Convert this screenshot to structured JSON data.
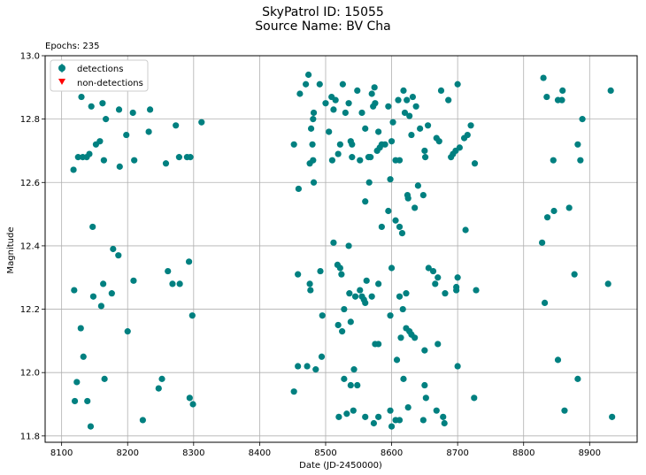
{
  "header": {
    "line1": "SkyPatrol ID: 15055",
    "line2": "Source Name: BV Cha",
    "epochs": "Epochs: 235"
  },
  "colors": {
    "detection": "#008080",
    "nondetection": "#ff0000",
    "grid": "#b0b0b0"
  },
  "chart_data": {
    "type": "scatter",
    "xlabel": "Date (JD-2450000)",
    "ylabel": "Magnitude",
    "xlim": [
      8075,
      8972
    ],
    "ylim": [
      13.0,
      11.78
    ],
    "y_inverted": true,
    "grid": true,
    "legend_position": "upper-left",
    "xticks": [
      8100,
      8200,
      8300,
      8400,
      8500,
      8600,
      8700,
      8800,
      8900
    ],
    "yticks": [
      11.8,
      12.0,
      12.2,
      12.4,
      12.6,
      12.8,
      13.0
    ],
    "xtick_labels": [
      "8100",
      "8200",
      "8300",
      "8400",
      "8500",
      "8600",
      "8700",
      "8800",
      "8900"
    ],
    "ytick_labels": [
      "11.8",
      "12.0",
      "12.2",
      "12.4",
      "12.6",
      "12.8",
      "13.0"
    ],
    "series": [
      {
        "name": "detections",
        "marker": "circle",
        "points": [
          [
            8118,
            12.64
          ],
          [
            8125,
            12.68
          ],
          [
            8132,
            12.68
          ],
          [
            8138,
            12.68
          ],
          [
            8142,
            12.69
          ],
          [
            8152,
            12.72
          ],
          [
            8158,
            12.73
          ],
          [
            8164,
            12.67
          ],
          [
            8188,
            12.65
          ],
          [
            8198,
            12.75
          ],
          [
            8210,
            12.67
          ],
          [
            8232,
            12.76
          ],
          [
            8258,
            12.66
          ],
          [
            8273,
            12.78
          ],
          [
            8278,
            12.68
          ],
          [
            8290,
            12.68
          ],
          [
            8295,
            12.68
          ],
          [
            8312,
            12.79
          ],
          [
            8130,
            12.87
          ],
          [
            8145,
            12.84
          ],
          [
            8162,
            12.85
          ],
          [
            8167,
            12.8
          ],
          [
            8187,
            12.83
          ],
          [
            8208,
            12.82
          ],
          [
            8234,
            12.83
          ],
          [
            8147,
            12.46
          ],
          [
            8178,
            12.39
          ],
          [
            8186,
            12.37
          ],
          [
            8119,
            12.26
          ],
          [
            8148,
            12.24
          ],
          [
            8160,
            12.21
          ],
          [
            8163,
            12.28
          ],
          [
            8176,
            12.25
          ],
          [
            8209,
            12.29
          ],
          [
            8261,
            12.32
          ],
          [
            8268,
            12.28
          ],
          [
            8279,
            12.28
          ],
          [
            8293,
            12.35
          ],
          [
            8129,
            12.14
          ],
          [
            8200,
            12.13
          ],
          [
            8298,
            12.18
          ],
          [
            8133,
            12.05
          ],
          [
            8123,
            11.97
          ],
          [
            8165,
            11.98
          ],
          [
            8252,
            11.98
          ],
          [
            8247,
            11.95
          ],
          [
            8120,
            11.91
          ],
          [
            8139,
            11.91
          ],
          [
            8294,
            11.92
          ],
          [
            8299,
            11.9
          ],
          [
            8223,
            11.85
          ],
          [
            8144,
            11.83
          ],
          [
            8452,
            12.72
          ],
          [
            8461,
            12.88
          ],
          [
            8470,
            12.91
          ],
          [
            8474,
            12.94
          ],
          [
            8478,
            12.77
          ],
          [
            8480,
            12.72
          ],
          [
            8476,
            12.66
          ],
          [
            8481,
            12.67
          ],
          [
            8481,
            12.8
          ],
          [
            8482,
            12.82
          ],
          [
            8482,
            12.6
          ],
          [
            8459,
            12.58
          ],
          [
            8491,
            12.91
          ],
          [
            8500,
            12.85
          ],
          [
            8505,
            12.76
          ],
          [
            8510,
            12.67
          ],
          [
            8509,
            12.87
          ],
          [
            8512,
            12.83
          ],
          [
            8515,
            12.86
          ],
          [
            8519,
            12.69
          ],
          [
            8522,
            12.72
          ],
          [
            8526,
            12.91
          ],
          [
            8530,
            12.82
          ],
          [
            8535,
            12.85
          ],
          [
            8538,
            12.73
          ],
          [
            8540,
            12.72
          ],
          [
            8540,
            12.68
          ],
          [
            8548,
            12.89
          ],
          [
            8552,
            12.67
          ],
          [
            8555,
            12.82
          ],
          [
            8560,
            12.77
          ],
          [
            8565,
            12.68
          ],
          [
            8566,
            12.6
          ],
          [
            8568,
            12.68
          ],
          [
            8570,
            12.88
          ],
          [
            8572,
            12.84
          ],
          [
            8574,
            12.9
          ],
          [
            8575,
            12.85
          ],
          [
            8578,
            12.7
          ],
          [
            8580,
            12.76
          ],
          [
            8582,
            12.71
          ],
          [
            8585,
            12.72
          ],
          [
            8590,
            12.72
          ],
          [
            8595,
            12.84
          ],
          [
            8598,
            12.61
          ],
          [
            8600,
            12.73
          ],
          [
            8602,
            12.79
          ],
          [
            8606,
            12.67
          ],
          [
            8610,
            12.86
          ],
          [
            8612,
            12.67
          ],
          [
            8618,
            12.89
          ],
          [
            8620,
            12.82
          ],
          [
            8623,
            12.86
          ],
          [
            8627,
            12.81
          ],
          [
            8630,
            12.75
          ],
          [
            8632,
            12.87
          ],
          [
            8637,
            12.84
          ],
          [
            8640,
            12.59
          ],
          [
            8643,
            12.77
          ],
          [
            8650,
            12.7
          ],
          [
            8651,
            12.68
          ],
          [
            8655,
            12.78
          ],
          [
            8668,
            12.74
          ],
          [
            8672,
            12.73
          ],
          [
            8675,
            12.89
          ],
          [
            8686,
            12.86
          ],
          [
            8690,
            12.68
          ],
          [
            8693,
            12.69
          ],
          [
            8697,
            12.7
          ],
          [
            8700,
            12.91
          ],
          [
            8703,
            12.71
          ],
          [
            8710,
            12.74
          ],
          [
            8715,
            12.75
          ],
          [
            8720,
            12.78
          ],
          [
            8726,
            12.66
          ],
          [
            8560,
            12.54
          ],
          [
            8585,
            12.46
          ],
          [
            8595,
            12.51
          ],
          [
            8606,
            12.48
          ],
          [
            8612,
            12.46
          ],
          [
            8616,
            12.44
          ],
          [
            8624,
            12.56
          ],
          [
            8625,
            12.55
          ],
          [
            8635,
            12.52
          ],
          [
            8648,
            12.56
          ],
          [
            8712,
            12.45
          ],
          [
            8512,
            12.41
          ],
          [
            8535,
            12.4
          ],
          [
            8458,
            12.31
          ],
          [
            8476,
            12.28
          ],
          [
            8477,
            12.26
          ],
          [
            8492,
            12.32
          ],
          [
            8518,
            12.34
          ],
          [
            8522,
            12.33
          ],
          [
            8524,
            12.31
          ],
          [
            8528,
            12.2
          ],
          [
            8536,
            12.25
          ],
          [
            8545,
            12.24
          ],
          [
            8552,
            12.26
          ],
          [
            8555,
            12.24
          ],
          [
            8558,
            12.23
          ],
          [
            8560,
            12.22
          ],
          [
            8562,
            12.29
          ],
          [
            8570,
            12.24
          ],
          [
            8580,
            12.28
          ],
          [
            8600,
            12.33
          ],
          [
            8612,
            12.24
          ],
          [
            8617,
            12.2
          ],
          [
            8622,
            12.25
          ],
          [
            8656,
            12.33
          ],
          [
            8663,
            12.32
          ],
          [
            8666,
            12.28
          ],
          [
            8670,
            12.3
          ],
          [
            8681,
            12.25
          ],
          [
            8698,
            12.27
          ],
          [
            8700,
            12.3
          ],
          [
            8698,
            12.26
          ],
          [
            8728,
            12.26
          ],
          [
            8495,
            12.18
          ],
          [
            8519,
            12.15
          ],
          [
            8525,
            12.13
          ],
          [
            8538,
            12.16
          ],
          [
            8575,
            12.09
          ],
          [
            8580,
            12.09
          ],
          [
            8598,
            12.18
          ],
          [
            8614,
            12.11
          ],
          [
            8622,
            12.14
          ],
          [
            8627,
            12.13
          ],
          [
            8630,
            12.12
          ],
          [
            8635,
            12.11
          ],
          [
            8650,
            12.07
          ],
          [
            8670,
            12.09
          ],
          [
            8458,
            12.02
          ],
          [
            8472,
            12.02
          ],
          [
            8485,
            12.01
          ],
          [
            8494,
            12.05
          ],
          [
            8543,
            12.01
          ],
          [
            8608,
            12.04
          ],
          [
            8700,
            12.02
          ],
          [
            8452,
            11.94
          ],
          [
            8528,
            11.98
          ],
          [
            8538,
            11.96
          ],
          [
            8548,
            11.96
          ],
          [
            8618,
            11.98
          ],
          [
            8625,
            11.89
          ],
          [
            8650,
            11.96
          ],
          [
            8652,
            11.92
          ],
          [
            8725,
            11.92
          ],
          [
            8520,
            11.86
          ],
          [
            8532,
            11.87
          ],
          [
            8542,
            11.88
          ],
          [
            8560,
            11.86
          ],
          [
            8573,
            11.84
          ],
          [
            8580,
            11.86
          ],
          [
            8598,
            11.88
          ],
          [
            8600,
            11.83
          ],
          [
            8606,
            11.85
          ],
          [
            8612,
            11.85
          ],
          [
            8648,
            11.85
          ],
          [
            8668,
            11.88
          ],
          [
            8678,
            11.86
          ],
          [
            8680,
            11.84
          ],
          [
            8830,
            12.93
          ],
          [
            8835,
            12.87
          ],
          [
            8852,
            12.86
          ],
          [
            8858,
            12.86
          ],
          [
            8859,
            12.89
          ],
          [
            8889,
            12.8
          ],
          [
            8932,
            12.89
          ],
          [
            8845,
            12.67
          ],
          [
            8882,
            12.72
          ],
          [
            8886,
            12.67
          ],
          [
            8828,
            12.41
          ],
          [
            8836,
            12.49
          ],
          [
            8846,
            12.51
          ],
          [
            8869,
            12.52
          ],
          [
            8832,
            12.22
          ],
          [
            8877,
            12.31
          ],
          [
            8928,
            12.28
          ],
          [
            8852,
            12.04
          ],
          [
            8882,
            11.98
          ],
          [
            8862,
            11.88
          ],
          [
            8934,
            11.86
          ]
        ]
      }
    ]
  },
  "legend": {
    "detections": "detections",
    "nondetections": "non-detections"
  }
}
